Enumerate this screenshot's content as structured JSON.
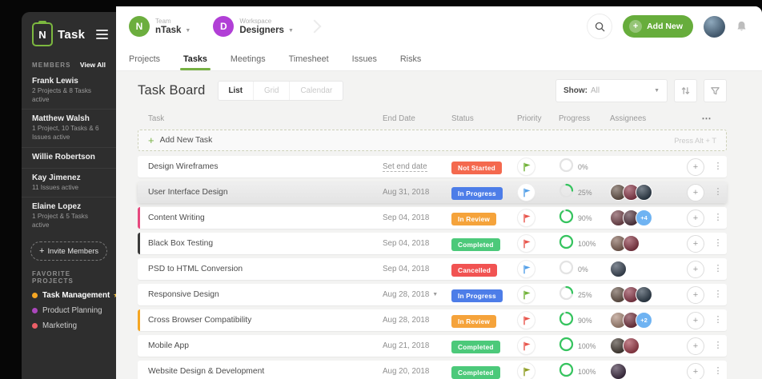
{
  "app": {
    "title": "Task",
    "logo_letter": "N"
  },
  "colors": {
    "accent_green": "#76b043",
    "progress_ring": "#35c45e",
    "sidebar_bg": "#2e2e2e",
    "overflow_chip": "#6fb3f2"
  },
  "icons": {
    "hamburger": "menu",
    "search": "magnifier",
    "add": "+",
    "bell": "notification",
    "sort": "up-down-arrows",
    "filter": "funnel",
    "star": "★",
    "menu_dots": "⋮",
    "more_horizontal": "⋯",
    "flag": "priority-flag",
    "chevron": "▾"
  },
  "sidebar": {
    "members_header": "MEMBERS",
    "view_all": "View All",
    "members": [
      {
        "name": "Frank Lewis",
        "detail": "2 Projects & 8 Tasks active"
      },
      {
        "name": "Matthew Walsh",
        "detail": "1 Project, 10 Tasks & 6 Issues active"
      },
      {
        "name": "Willie Robertson",
        "detail": ""
      },
      {
        "name": "Kay Jimenez",
        "detail": "11 Issues active"
      },
      {
        "name": "Elaine Lopez",
        "detail": "1 Project & 5 Tasks active"
      }
    ],
    "invite_label": "Invite Members",
    "favorites_header": "FAVORITE PROJECTS",
    "favorites": [
      {
        "label": "Task Management",
        "color": "#f5a623",
        "starred": true,
        "active": true
      },
      {
        "label": "Product Planning",
        "color": "#ab47bc",
        "starred": false,
        "active": false
      },
      {
        "label": "Marketing",
        "color": "#ec5f67",
        "starred": false,
        "active": false
      }
    ]
  },
  "header": {
    "team": {
      "label": "Team",
      "name": "nTask",
      "avatar_letter": "N",
      "avatar_color": "#6cae3e"
    },
    "workspace": {
      "label": "Workspace",
      "name": "Designers",
      "avatar_letter": "D",
      "avatar_color": "#b13fd6"
    },
    "add_new_label": "Add New"
  },
  "tabs": [
    {
      "label": "Projects",
      "active": false
    },
    {
      "label": "Tasks",
      "active": true
    },
    {
      "label": "Meetings",
      "active": false
    },
    {
      "label": "Timesheet",
      "active": false
    },
    {
      "label": "Issues",
      "active": false
    },
    {
      "label": "Risks",
      "active": false
    }
  ],
  "board": {
    "title": "Task Board",
    "views": [
      {
        "label": "List",
        "active": true
      },
      {
        "label": "Grid",
        "active": false
      },
      {
        "label": "Calendar",
        "active": false
      }
    ],
    "show_label": "Show:",
    "show_value": "All"
  },
  "table": {
    "columns": [
      "Task",
      "End Date",
      "Status",
      "Priority",
      "Progress",
      "Assignees"
    ],
    "more_icon": "⋯",
    "add_row": {
      "label": "Add New Task",
      "hint": "Press Alt + T"
    },
    "rows": [
      {
        "task": "Design Wireframes",
        "date": "Set end date",
        "date_is_placeholder": true,
        "date_caret": false,
        "status": "Not Started",
        "status_color": "#f4694e",
        "flag_color": "#71b238",
        "progress": 0,
        "progress_label": "0%",
        "avatars": [],
        "overflow": "",
        "accent": "",
        "highlight": false
      },
      {
        "task": "User Interface Design",
        "date": "Aug 31, 2018",
        "date_is_placeholder": false,
        "date_caret": false,
        "status": "In Progress",
        "status_color": "#4d7de8",
        "flag_color": "#54a0e8",
        "progress": 25,
        "progress_label": "25%",
        "avatars": [
          "#6d5a4e",
          "#913d4e",
          "#31404f"
        ],
        "overflow": "",
        "accent": "",
        "highlight": true
      },
      {
        "task": "Content Writing",
        "date": "Sep 04, 2018",
        "date_is_placeholder": false,
        "date_caret": false,
        "status": "In Review",
        "status_color": "#f5a33b",
        "flag_color": "#e8554c",
        "progress": 90,
        "progress_label": "90%",
        "avatars": [
          "#7c4a52",
          "#5a3b46"
        ],
        "overflow": "+4",
        "accent": "#e6487e",
        "highlight": false
      },
      {
        "task": "Black Box Testing",
        "date": "Sep 04, 2018",
        "date_is_placeholder": false,
        "date_caret": false,
        "status": "Completed",
        "status_color": "#4cc97a",
        "flag_color": "#e8554c",
        "progress": 100,
        "progress_label": "100%",
        "avatars": [
          "#86675a",
          "#8e3b4a"
        ],
        "overflow": "",
        "accent": "#3a3a3a",
        "highlight": false
      },
      {
        "task": "PSD to HTML Conversion",
        "date": "Sep 04, 2018",
        "date_is_placeholder": false,
        "date_caret": false,
        "status": "Cancelled",
        "status_color": "#f15352",
        "flag_color": "#54a0e8",
        "progress": 0,
        "progress_label": "0%",
        "avatars": [
          "#3e4a5a"
        ],
        "overflow": "",
        "accent": "",
        "highlight": false
      },
      {
        "task": "Responsive Design",
        "date": "Aug 28, 2018",
        "date_is_placeholder": false,
        "date_caret": true,
        "status": "In Progress",
        "status_color": "#4d7de8",
        "flag_color": "#71b238",
        "progress": 25,
        "progress_label": "25%",
        "avatars": [
          "#6d5a4e",
          "#913d4e",
          "#31404f"
        ],
        "overflow": "",
        "accent": "",
        "highlight": false
      },
      {
        "task": "Cross Browser Compatibility",
        "date": "Aug 28, 2018",
        "date_is_placeholder": false,
        "date_caret": false,
        "status": "In Review",
        "status_color": "#f5a33b",
        "flag_color": "#e8554c",
        "progress": 90,
        "progress_label": "90%",
        "avatars": [
          "#b08f7e",
          "#7c3845"
        ],
        "overflow": "+2",
        "accent": "#f5a623",
        "highlight": false
      },
      {
        "task": "Mobile App",
        "date": "Aug 21, 2018",
        "date_is_placeholder": false,
        "date_caret": false,
        "status": "Completed",
        "status_color": "#4cc97a",
        "flag_color": "#e8554c",
        "progress": 100,
        "progress_label": "100%",
        "avatars": [
          "#4a4038",
          "#a3404e"
        ],
        "overflow": "",
        "accent": "",
        "highlight": false
      },
      {
        "task": "Website Design & Development",
        "date": "Aug 20, 2018",
        "date_is_placeholder": false,
        "date_caret": false,
        "status": "Completed",
        "status_color": "#4cc97a",
        "flag_color": "#8f9d23",
        "progress": 100,
        "progress_label": "100%",
        "avatars": [
          "#433148"
        ],
        "overflow": "",
        "accent": "",
        "highlight": false
      }
    ]
  }
}
